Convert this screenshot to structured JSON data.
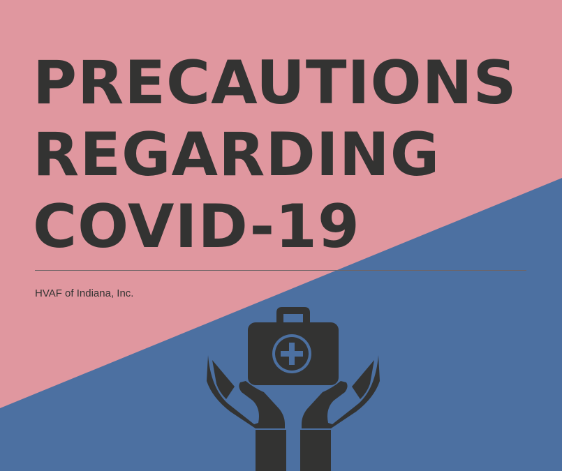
{
  "title": {
    "line1": "PRECAUTIONS",
    "line2": "REGARDING",
    "line3": "COVID-19"
  },
  "organization": "HVAF of Indiana, Inc.",
  "colors": {
    "background_top": "#E0979F",
    "background_bottom": "#4C70A1",
    "text": "#333332",
    "icon": "#333332",
    "divider": "#6E6466"
  },
  "icons": [
    "medical-kit-icon",
    "caring-hands-icon"
  ]
}
